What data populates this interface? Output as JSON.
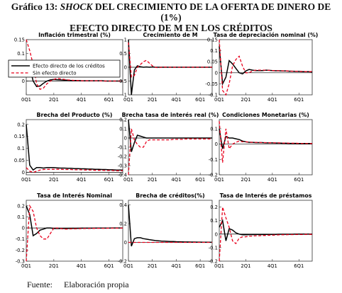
{
  "header": {
    "prefix": "Gráfico 13: ",
    "shock": "SHOCK",
    "rest_line1": " DEL CRECIMIENTO DE LA OFERTA DE DINERO DE (1%)",
    "line2": "EFECTO DIRECTO DE M EN LOS CRÉDITOS"
  },
  "source": {
    "label": "Fuente:",
    "text": "Elaboración propia"
  },
  "colors": {
    "with_effect": "#000000",
    "without_effect": "#e8001c",
    "zero_line": "#000000"
  },
  "legend": {
    "entries": [
      "Efecto directo de los créditos",
      "Sin efecto directo"
    ],
    "placement": "inside first panel, middle-left"
  },
  "chart_data": [
    {
      "type": "line",
      "title": "Inflación trimestral (%)",
      "x_ticks": [
        "0Q1",
        "2Q1",
        "4Q1",
        "6Q1"
      ],
      "x_range": [
        0,
        28
      ],
      "ylim": [
        -0.05,
        0.15
      ],
      "y_ticks": [
        "0.15",
        "0.1",
        "0.05",
        "0"
      ],
      "y_tick_values": [
        0.15,
        0.1,
        0.05,
        0
      ],
      "series": [
        {
          "name": "Efecto directo de los créditos",
          "values": [
            0.032,
            0.05,
            0.0,
            -0.02,
            -0.018,
            -0.008,
            0.0,
            0.004,
            0.006,
            0.005,
            0.004,
            0.003,
            0.003,
            0.002,
            0.002,
            0.002,
            0.001,
            0.001,
            0.001,
            0.001,
            0.001,
            0.001,
            0.001,
            0.0,
            0.0,
            0.0,
            0.0,
            0.0,
            0.0
          ]
        },
        {
          "name": "Sin efecto directo",
          "values": [
            0.15,
            0.11,
            0.06,
            -0.01,
            -0.03,
            -0.025,
            -0.01,
            0.0,
            0.006,
            0.01,
            0.008,
            0.006,
            0.004,
            0.003,
            0.002,
            0.002,
            0.001,
            0.001,
            0.001,
            0.001,
            0.001,
            0.001,
            0.0,
            0.0,
            0.0,
            0.0,
            0.0,
            0.0,
            0.0
          ]
        }
      ]
    },
    {
      "type": "line",
      "title": "Crecimiento de M",
      "x_ticks": [
        "0Q1",
        "2Q1",
        "4Q1",
        "6Q1"
      ],
      "x_range": [
        0,
        28
      ],
      "ylim": [
        -1,
        1
      ],
      "y_ticks": [
        "1",
        "0.5",
        "0",
        "-0.5",
        "-1"
      ],
      "y_tick_values": [
        1,
        0.5,
        0,
        -0.5,
        -1
      ],
      "series": [
        {
          "name": "Efecto directo de los créditos",
          "values": [
            1,
            -1,
            -0.1,
            0.05,
            0.02,
            0.0,
            0.01,
            0.0,
            0.01,
            0.0,
            0.0,
            0.0,
            0.0,
            0.0,
            0.0,
            0.0,
            0.0,
            0.0,
            0.0,
            0.0,
            0.0,
            0.0,
            0.0,
            0.0,
            0.0,
            0.0,
            0.0,
            0.0,
            0.0
          ]
        },
        {
          "name": "Sin efecto directo",
          "values": [
            0.9,
            -0.35,
            -0.3,
            0.0,
            0.1,
            0.2,
            0.25,
            0.15,
            0.05,
            0.0,
            -0.02,
            0.0,
            0.01,
            0.0,
            0.0,
            0.0,
            0.0,
            0.0,
            0.0,
            0.0,
            0.0,
            0.0,
            0.0,
            0.0,
            0.0,
            0.0,
            0.0,
            0.0,
            0.0
          ]
        }
      ]
    },
    {
      "type": "line",
      "title": "Tasa de depreciación nominal (%)",
      "x_ticks": [
        "0Q1",
        "2Q1",
        "4Q1",
        "6Q1"
      ],
      "x_range": [
        0,
        28
      ],
      "ylim": [
        -0.1,
        0.15
      ],
      "y_ticks": [
        "0.15",
        "0.1",
        "0.05",
        "0",
        "-0.05",
        "-0.1"
      ],
      "y_tick_values": [
        0.15,
        0.1,
        0.05,
        0,
        -0.05,
        -0.1
      ],
      "series": [
        {
          "name": "Efecto directo de los créditos",
          "values": [
            0.12,
            -0.05,
            -0.02,
            0.055,
            0.04,
            0.02,
            0.0,
            -0.005,
            0.008,
            0.015,
            0.012,
            0.01,
            0.01,
            0.01,
            0.012,
            0.011,
            0.01,
            0.009,
            0.009,
            0.008,
            0.008,
            0.007,
            0.007,
            0.006,
            0.006,
            0.005,
            0.005,
            0.005,
            0.004
          ]
        },
        {
          "name": "Sin efecto directo",
          "values": [
            0.15,
            -0.08,
            -0.1,
            -0.05,
            0.03,
            0.06,
            0.075,
            0.03,
            0.0,
            0.0,
            0.008,
            0.012,
            0.012,
            0.012,
            0.012,
            0.011,
            0.01,
            0.01,
            0.009,
            0.009,
            0.008,
            0.008,
            0.007,
            0.007,
            0.006,
            0.006,
            0.005,
            0.005,
            0.005
          ]
        }
      ]
    },
    {
      "type": "line",
      "title": "Brecha del Producto (%)",
      "x_ticks": [
        "0Q1",
        "2Q1",
        "4Q1",
        "6Q1"
      ],
      "x_range": [
        0,
        28
      ],
      "ylim": [
        -0.01,
        0.22
      ],
      "y_ticks": [
        "0.2",
        "0.15",
        "0.1",
        "0.05",
        "0"
      ],
      "y_tick_values": [
        0.2,
        0.15,
        0.1,
        0.05,
        0
      ],
      "series": [
        {
          "name": "Efecto directo de los créditos",
          "values": [
            0.2,
            0.03,
            0.01,
            0.02,
            0.02,
            0.018,
            0.02,
            0.02,
            0.02,
            0.019,
            0.018,
            0.018,
            0.017,
            0.017,
            0.016,
            0.016,
            0.015,
            0.015,
            0.014,
            0.014,
            0.013,
            0.013,
            0.012,
            0.012,
            0.011,
            0.011,
            0.01,
            0.01,
            0.01
          ]
        },
        {
          "name": "Sin efecto directo",
          "values": [
            0.02,
            0.005,
            0.0,
            0.005,
            0.01,
            0.012,
            0.013,
            0.013,
            0.013,
            0.013,
            0.013,
            0.012,
            0.012,
            0.012,
            0.011,
            0.011,
            0.011,
            0.01,
            0.01,
            0.01,
            0.009,
            0.009,
            0.009,
            0.008,
            0.008,
            0.008,
            0.007,
            0.007,
            0.007
          ]
        }
      ]
    },
    {
      "type": "line",
      "title": "Brecha tasa de interés real (%)",
      "x_ticks": [
        "0Q1",
        "2Q1",
        "4Q1",
        "6Q1"
      ],
      "x_range": [
        0,
        28
      ],
      "ylim": [
        -0.4,
        0.2
      ],
      "y_ticks": [
        "0.2",
        "0.1",
        "0",
        "-0.1",
        "-0.2",
        "-0.3",
        "-0.4"
      ],
      "y_tick_values": [
        0.2,
        0.1,
        0,
        -0.1,
        -0.2,
        -0.3,
        -0.4
      ],
      "series": [
        {
          "name": "Efecto directo de los créditos",
          "values": [
            0.2,
            -0.15,
            -0.05,
            0.03,
            0.02,
            0.01,
            0.0,
            0.0,
            0.0,
            0.0,
            0.0,
            0.0,
            0.0,
            0.0,
            0.0,
            0.0,
            0.0,
            0.0,
            0.0,
            0.0,
            0.0,
            0.0,
            0.0,
            0.0,
            0.0,
            0.0,
            0.0,
            0.0,
            0.0
          ]
        },
        {
          "name": "Sin efecto directo",
          "values": [
            -0.4,
            0.1,
            -0.02,
            -0.07,
            -0.1,
            -0.1,
            -0.04,
            -0.02,
            -0.02,
            -0.02,
            -0.02,
            -0.02,
            -0.02,
            -0.02,
            -0.02,
            -0.015,
            -0.015,
            -0.015,
            -0.015,
            -0.01,
            -0.01,
            -0.01,
            -0.01,
            -0.01,
            -0.01,
            -0.01,
            -0.01,
            -0.01,
            -0.01
          ]
        }
      ]
    },
    {
      "type": "line",
      "title": "Condiciones Monetarias (%)",
      "x_ticks": [
        "0Q1",
        "2Q1",
        "4Q1",
        "6Q1"
      ],
      "x_range": [
        0,
        28
      ],
      "ylim": [
        -0.2,
        0.16
      ],
      "y_ticks": [
        "0.1",
        "0",
        "-0.1",
        "-0.2"
      ],
      "y_tick_values": [
        0.1,
        0,
        -0.1,
        -0.2
      ],
      "series": [
        {
          "name": "Efecto directo de los créditos",
          "values": [
            0.1,
            -0.03,
            0.05,
            0.04,
            0.04,
            0.035,
            0.03,
            0.02,
            0.015,
            0.012,
            0.012,
            0.01,
            0.01,
            0.01,
            0.008,
            0.008,
            0.008,
            0.007,
            0.007,
            0.006,
            0.006,
            0.005,
            0.005,
            0.005,
            0.004,
            0.004,
            0.004,
            0.004,
            0.003
          ]
        },
        {
          "name": "Sin efecto directo",
          "values": [
            0.15,
            -0.12,
            0.1,
            -0.03,
            0.0,
            0.012,
            0.02,
            0.015,
            0.015,
            0.013,
            0.012,
            0.012,
            0.011,
            0.01,
            0.01,
            0.009,
            0.009,
            0.008,
            0.008,
            0.007,
            0.007,
            0.006,
            0.006,
            0.006,
            0.005,
            0.005,
            0.005,
            0.004,
            0.004
          ]
        }
      ]
    },
    {
      "type": "line",
      "title": "Tasa de Interés Nominal",
      "x_ticks": [
        "0Q1",
        "2Q1",
        "4Q1",
        "6Q1"
      ],
      "x_range": [
        0,
        28
      ],
      "ylim": [
        -0.3,
        0.25
      ],
      "y_ticks": [
        "0.2",
        "0.1",
        "0",
        "-0.1",
        "-0.2",
        "-0.3"
      ],
      "y_tick_values": [
        0.2,
        0.1,
        0,
        -0.1,
        -0.2,
        -0.3
      ],
      "series": [
        {
          "name": "Efecto directo de los créditos",
          "values": [
            0.2,
            0.12,
            -0.07,
            -0.05,
            -0.02,
            -0.01,
            0.0,
            0.0,
            -0.005,
            -0.005,
            -0.005,
            -0.004,
            -0.004,
            -0.003,
            -0.003,
            -0.003,
            -0.002,
            -0.002,
            -0.002,
            -0.002,
            -0.001,
            -0.001,
            -0.001,
            -0.001,
            -0.001,
            0.0,
            0.0,
            0.0,
            0.0
          ]
        },
        {
          "name": "Sin efecto directo",
          "values": [
            -0.3,
            0.2,
            0.15,
            0.0,
            -0.07,
            -0.1,
            -0.1,
            -0.05,
            0.0,
            0.0,
            -0.005,
            -0.01,
            -0.01,
            -0.008,
            -0.008,
            -0.007,
            -0.006,
            -0.005,
            -0.005,
            -0.004,
            -0.004,
            -0.003,
            -0.003,
            -0.003,
            -0.002,
            -0.002,
            -0.002,
            -0.002,
            -0.001
          ]
        }
      ]
    },
    {
      "type": "line",
      "title": "Brecha de créditos(%)",
      "x_ticks": [
        "0Q1",
        "2Q1",
        "4Q1",
        "6Q1"
      ],
      "x_range": [
        0,
        28
      ],
      "ylim": [
        -0.2,
        0.45
      ],
      "y_ticks": [
        "0.4",
        "0.2",
        "0",
        "-0.2"
      ],
      "y_tick_values": [
        0.4,
        0.2,
        0,
        -0.2
      ],
      "series": [
        {
          "name": "Efecto directo de los créditos",
          "values": [
            0.4,
            -0.04,
            0.04,
            0.05,
            0.05,
            0.04,
            0.035,
            0.03,
            0.025,
            0.02,
            0.018,
            0.015,
            0.013,
            0.012,
            0.01,
            0.009,
            0.008,
            0.007,
            0.006,
            0.005,
            0.005,
            0.004,
            0.004,
            0.003,
            0.003,
            0.002,
            0.002,
            0.002,
            0.001
          ]
        },
        {
          "name": "Sin efecto directo",
          "values": [
            0.0,
            0.0,
            0.0,
            0.0,
            0.0,
            0.0,
            0.0,
            0.0,
            0.0,
            0.0,
            0.0,
            0.0,
            0.0,
            0.0,
            0.0,
            0.0,
            0.0,
            0.0,
            0.0,
            0.0,
            0.0,
            0.0,
            0.0,
            0.0,
            0.0,
            0.0,
            0.0,
            0.0,
            0.0
          ]
        }
      ]
    },
    {
      "type": "line",
      "title": "Tasa de Interés de préstamos",
      "x_ticks": [
        "0Q1",
        "2Q1",
        "4Q1",
        "6Q1"
      ],
      "x_range": [
        0,
        28
      ],
      "ylim": [
        -0.2,
        0.25
      ],
      "y_ticks": [
        "0.2",
        "0.1",
        "0",
        "-0.1",
        "-0.2"
      ],
      "y_tick_values": [
        0.2,
        0.1,
        0,
        -0.1,
        -0.2
      ],
      "series": [
        {
          "name": "Efecto directo de los créditos",
          "values": [
            0.05,
            0.1,
            -0.05,
            0.04,
            0.03,
            0.01,
            0.0,
            -0.005,
            -0.005,
            -0.004,
            -0.004,
            -0.003,
            -0.003,
            -0.003,
            -0.002,
            -0.002,
            -0.002,
            -0.002,
            -0.001,
            -0.001,
            -0.001,
            -0.001,
            -0.001,
            0.0,
            0.0,
            0.0,
            0.0,
            0.0,
            0.0
          ]
        },
        {
          "name": "Sin efecto directo",
          "values": [
            -0.2,
            0.2,
            0.12,
            0.05,
            -0.05,
            -0.07,
            -0.03,
            -0.02,
            -0.02,
            -0.015,
            -0.015,
            -0.012,
            -0.012,
            -0.01,
            -0.01,
            -0.008,
            -0.008,
            -0.007,
            -0.006,
            -0.005,
            -0.005,
            -0.004,
            -0.004,
            -0.003,
            -0.003,
            -0.003,
            -0.002,
            -0.002,
            -0.002
          ]
        }
      ]
    }
  ]
}
